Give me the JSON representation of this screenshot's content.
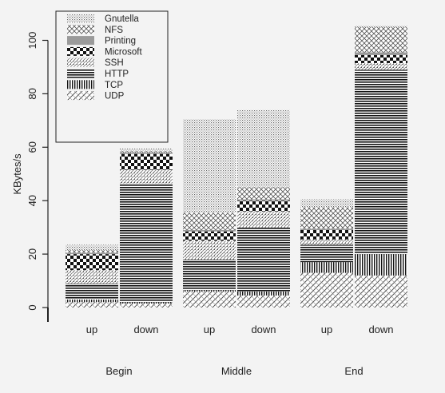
{
  "chart_data": {
    "type": "bar",
    "stacked": true,
    "ylabel": "KBytes/s",
    "xlabel": "",
    "ylim": [
      0,
      105
    ],
    "yticks": [
      0,
      20,
      40,
      60,
      80,
      100
    ],
    "grid": false,
    "legend_position": "top-left",
    "group_labels": [
      "Begin",
      "Middle",
      "End"
    ],
    "bars": [
      {
        "group": "Begin",
        "label": "up"
      },
      {
        "group": "Begin",
        "label": "down"
      },
      {
        "group": "Middle",
        "label": "up"
      },
      {
        "group": "Middle",
        "label": "down"
      },
      {
        "group": "End",
        "label": "up"
      },
      {
        "group": "End",
        "label": "down"
      }
    ],
    "series": [
      {
        "name": "UDP",
        "pattern": "diag-hatch",
        "values": [
          2.0,
          1.5,
          6.0,
          4.5,
          13.0,
          12.0
        ]
      },
      {
        "name": "TCP",
        "pattern": "vlines",
        "values": [
          1.0,
          0.5,
          0.5,
          1.5,
          4.0,
          8.0
        ]
      },
      {
        "name": "HTTP",
        "pattern": "hlines",
        "values": [
          6.0,
          44.5,
          11.5,
          24.0,
          6.5,
          69.0
        ]
      },
      {
        "name": "SSH",
        "pattern": "fine-dots",
        "values": [
          5.0,
          5.0,
          7.0,
          6.0,
          2.0,
          2.5
        ]
      },
      {
        "name": "Microsoft",
        "pattern": "checker",
        "values": [
          6.0,
          6.0,
          3.5,
          4.0,
          3.5,
          3.0
        ]
      },
      {
        "name": "Printing",
        "pattern": "solid-gray",
        "values": [
          0.5,
          0.5,
          0.5,
          0.5,
          0.5,
          1.0
        ]
      },
      {
        "name": "NFS",
        "pattern": "crosshatch",
        "values": [
          1.0,
          0.5,
          6.5,
          4.5,
          8.0,
          9.5
        ]
      },
      {
        "name": "Gnutella",
        "pattern": "fine-dots2",
        "values": [
          2.0,
          1.0,
          35.0,
          29.0,
          3.0,
          0.5
        ]
      }
    ],
    "legend_order": [
      "Gnutella",
      "NFS",
      "Printing",
      "Microsoft",
      "SSH",
      "HTTP",
      "TCP",
      "UDP"
    ]
  }
}
